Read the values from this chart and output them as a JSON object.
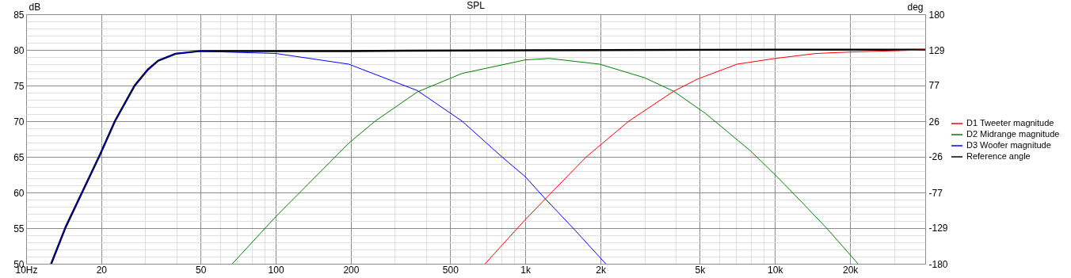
{
  "chart_data": {
    "type": "line",
    "title": "SPL",
    "ylabel": "dB",
    "y2label": "deg",
    "log": "x",
    "grid": true,
    "legend": "right",
    "marker": "none",
    "line_style": "solid",
    "xlim": [
      10,
      40000
    ],
    "xticks": [
      {
        "value": 10,
        "label": "10Hz"
      },
      20,
      {
        "value": 30,
        "label": null
      },
      {
        "value": 40,
        "label": null
      },
      50,
      {
        "value": 60,
        "label": null
      },
      {
        "value": 70,
        "label": null
      },
      {
        "value": 80,
        "label": null
      },
      {
        "value": 90,
        "label": null
      },
      100,
      200,
      {
        "value": 300,
        "label": null
      },
      {
        "value": 400,
        "label": null
      },
      500,
      {
        "value": 600,
        "label": null
      },
      {
        "value": 700,
        "label": null
      },
      {
        "value": 800,
        "label": null
      },
      {
        "value": 900,
        "label": null
      },
      {
        "value": 1000,
        "label": "1k"
      },
      {
        "value": 2000,
        "label": "2k"
      },
      {
        "value": 3000,
        "label": null
      },
      {
        "value": 4000,
        "label": null
      },
      {
        "value": 5000,
        "label": "5k"
      },
      {
        "value": 6000,
        "label": null
      },
      {
        "value": 7000,
        "label": null
      },
      {
        "value": 8000,
        "label": null
      },
      {
        "value": 9000,
        "label": null
      },
      {
        "value": 10000,
        "label": "10k"
      },
      {
        "value": 20000,
        "label": "20k"
      },
      {
        "value": 30000,
        "label": null
      }
    ],
    "ylim": [
      50,
      85
    ],
    "yticks": [
      50,
      {
        "value": 51,
        "label": null
      },
      {
        "value": 52,
        "label": null
      },
      {
        "value": 53,
        "label": null
      },
      {
        "value": 54,
        "label": null
      },
      55,
      {
        "value": 56,
        "label": null
      },
      {
        "value": 57,
        "label": null
      },
      {
        "value": 58,
        "label": null
      },
      {
        "value": 59,
        "label": null
      },
      60,
      {
        "value": 61,
        "label": null
      },
      {
        "value": 62,
        "label": null
      },
      {
        "value": 63,
        "label": null
      },
      {
        "value": 64,
        "label": null
      },
      65,
      {
        "value": 66,
        "label": null
      },
      {
        "value": 67,
        "label": null
      },
      {
        "value": 68,
        "label": null
      },
      {
        "value": 69,
        "label": null
      },
      70,
      {
        "value": 71,
        "label": null
      },
      {
        "value": 72,
        "label": null
      },
      {
        "value": 73,
        "label": null
      },
      {
        "value": 74,
        "label": null
      },
      75,
      {
        "value": 76,
        "label": null
      },
      {
        "value": 77,
        "label": null
      },
      {
        "value": 78,
        "label": null
      },
      {
        "value": 79,
        "label": null
      },
      80,
      {
        "value": 81,
        "label": null
      },
      {
        "value": 82,
        "label": null
      },
      {
        "value": 83,
        "label": null
      },
      {
        "value": 84,
        "label": null
      },
      85
    ],
    "y2lim": [
      -180,
      180
    ],
    "y2ticks": [
      {
        "value": -180,
        "label": "-180"
      },
      {
        "value": -128.571,
        "label": "-129"
      },
      {
        "value": -77.143,
        "label": "-77"
      },
      {
        "value": -25.714,
        "label": "-26"
      },
      {
        "value": 25.714,
        "label": "26"
      },
      {
        "value": 77.143,
        "label": "77"
      },
      {
        "value": 128.571,
        "label": "129"
      },
      {
        "value": 180,
        "label": "180"
      }
    ],
    "series": [
      {
        "name": "D1 Tweeter magnitude",
        "color": "#ff0000",
        "x": [
          690,
          1000,
          1202,
          1755,
          2596,
          3928,
          4890,
          7050,
          10000,
          14600,
          20000,
          40000
        ],
        "values": [
          50,
          56.2,
          59.1,
          65.0,
          70.0,
          74.2,
          75.9,
          78.0,
          78.8,
          79.5,
          79.7,
          80.0
        ]
      },
      {
        "name": "D2 Midrange magnitude",
        "color": "#008000",
        "x": [
          67,
          100,
          196,
          250,
          369,
          558,
          1000,
          1248,
          1983,
          3000,
          3928,
          5260,
          7940,
          10000,
          11750,
          16100,
          21500
        ],
        "values": [
          50,
          56.6,
          66.9,
          70.0,
          74.1,
          76.7,
          78.6,
          78.8,
          78.0,
          76.1,
          74.2,
          71.1,
          65.9,
          62.5,
          60.0,
          55.0,
          50
        ]
      },
      {
        "name": "D3 Woofer magnitude",
        "color": "#0000ff",
        "x": [
          12.6,
          14.4,
          19.8,
          22.7,
          27.2,
          30.7,
          33.8,
          39.7,
          50,
          100,
          196,
          369,
          558,
          805,
          1000,
          1202,
          1553,
          2098
        ],
        "values": [
          50,
          55.2,
          65.4,
          70.0,
          75.0,
          77.2,
          78.5,
          79.5,
          79.8,
          79.5,
          78.0,
          74.3,
          70.0,
          65.0,
          62.2,
          59.1,
          55.0,
          50
        ]
      },
      {
        "name": "Reference angle",
        "color": "#000000",
        "axis": "y2",
        "x": [
          12.6,
          14.4,
          19.8,
          22.7,
          27.2,
          30.7,
          33.8,
          39.7,
          50,
          100,
          200,
          1000,
          10000,
          40000
        ],
        "values": [
          -180,
          -127,
          -22,
          26,
          77,
          100,
          113,
          123,
          127,
          127,
          127,
          128,
          129,
          129
        ]
      }
    ]
  }
}
